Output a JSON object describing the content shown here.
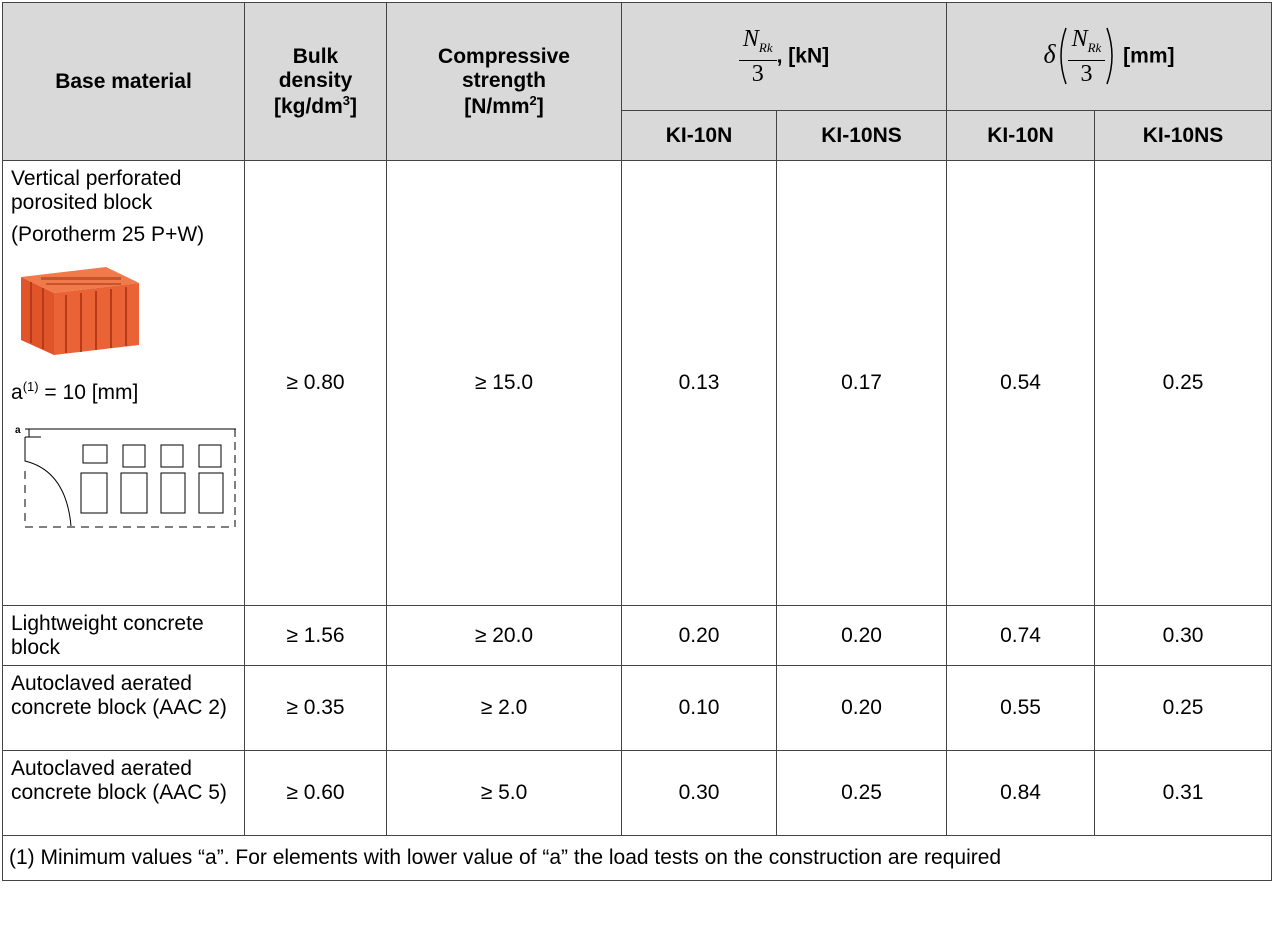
{
  "header": {
    "base_material": "Base material",
    "bulk_density": {
      "lines": [
        "Bulk",
        "density"
      ],
      "text": "[kg/dm",
      "sup": "3",
      "end": "]"
    },
    "compressive_strength": {
      "lines": [
        "Compressive",
        "strength"
      ],
      "text": "[N/mm",
      "sup": "2",
      "end": "]"
    },
    "load": {
      "numerator": "N",
      "subscript": "Rk",
      "denominator": "3",
      "unit": ", [kN]"
    },
    "displacement": {
      "symbol": "δ",
      "numerator": "N",
      "subscript": "Rk",
      "denominator": "3",
      "unit": "[mm]"
    },
    "sub": [
      "KI-10N",
      "KI-10NS",
      "KI-10N",
      "KI-10NS"
    ]
  },
  "rows": [
    {
      "base_material": [
        "Vertical perforated porosited block",
        "(Porotherm 25 P+W)"
      ],
      "dimension": {
        "symbol": "a",
        "sup": "(1)",
        "text": " = 10 [mm]"
      },
      "diagram_label": "a",
      "bulk_density": "≥ 0.80",
      "compressive_strength": "≥ 15.0",
      "values": [
        "0.13",
        "0.17",
        "0.54",
        "0.25"
      ]
    },
    {
      "base_material": [
        "Lightweight concrete block"
      ],
      "bulk_density": "≥ 1.56",
      "compressive_strength": "≥ 20.0",
      "values": [
        "0.20",
        "0.20",
        "0.74",
        "0.30"
      ]
    },
    {
      "base_material": [
        "Autoclaved aerated concrete block (AAC 2)"
      ],
      "bulk_density": "≥ 0.35",
      "compressive_strength": "≥ 2.0",
      "values": [
        "0.10",
        "0.20",
        "0.55",
        "0.25"
      ]
    },
    {
      "base_material": [
        "Autoclaved aerated concrete block (AAC 5)"
      ],
      "bulk_density": "≥ 0.60",
      "compressive_strength": "≥ 5.0",
      "values": [
        "0.30",
        "0.25",
        "0.84",
        "0.31"
      ]
    }
  ],
  "footnote": "(1) Minimum values “a”. For elements with lower value of “a” the load tests on the construction are required"
}
